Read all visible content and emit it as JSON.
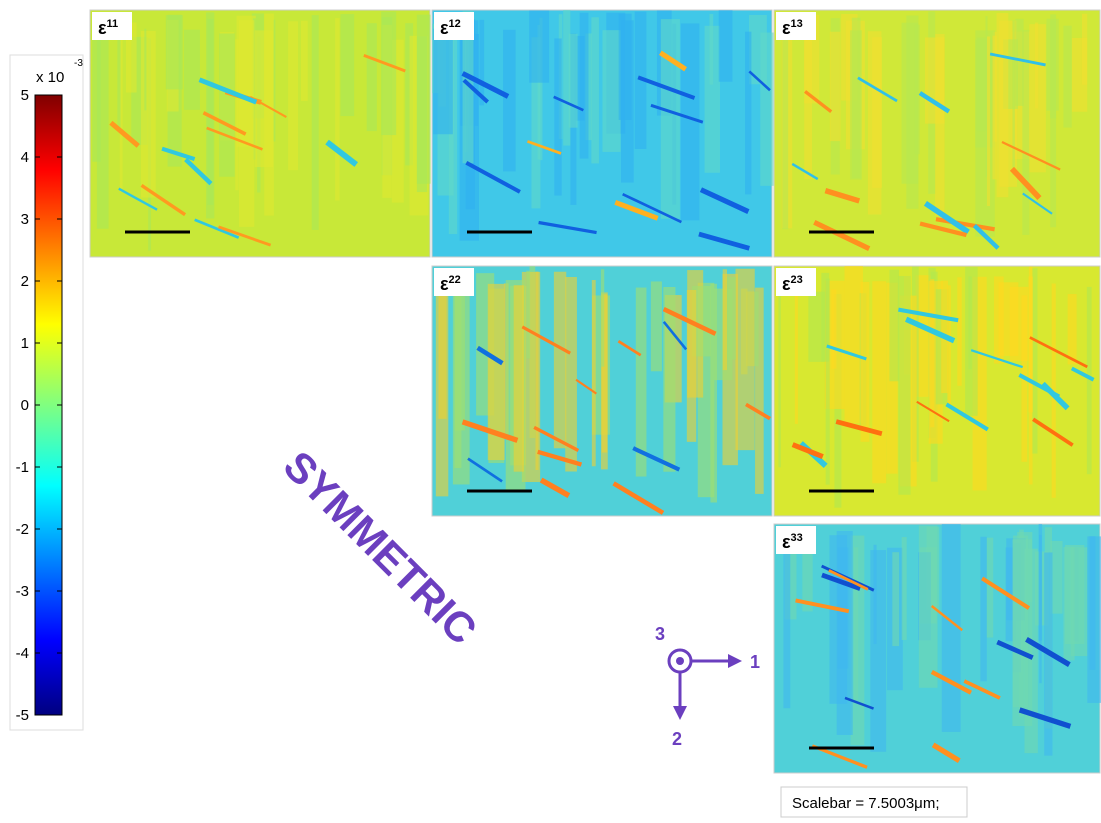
{
  "colorbar": {
    "multiplier": "x 10",
    "exponent": "-3",
    "lim": [
      -5,
      5
    ],
    "ticks": [
      5,
      4,
      3,
      2,
      1,
      0,
      -1,
      -2,
      -3,
      -4,
      -5
    ]
  },
  "panels": [
    {
      "symbol": "ε",
      "index": "11"
    },
    {
      "symbol": "ε",
      "index": "12"
    },
    {
      "symbol": "ε",
      "index": "13"
    },
    {
      "symbol": "ε",
      "index": "22"
    },
    {
      "symbol": "ε",
      "index": "23"
    },
    {
      "symbol": "ε",
      "index": "33"
    }
  ],
  "annotation": "SYMMETRIC",
  "axes": {
    "out_of_plane": "3",
    "horizontal": "1",
    "vertical": "2"
  },
  "scalebar": "Scalebar = 7.5003μm;"
}
